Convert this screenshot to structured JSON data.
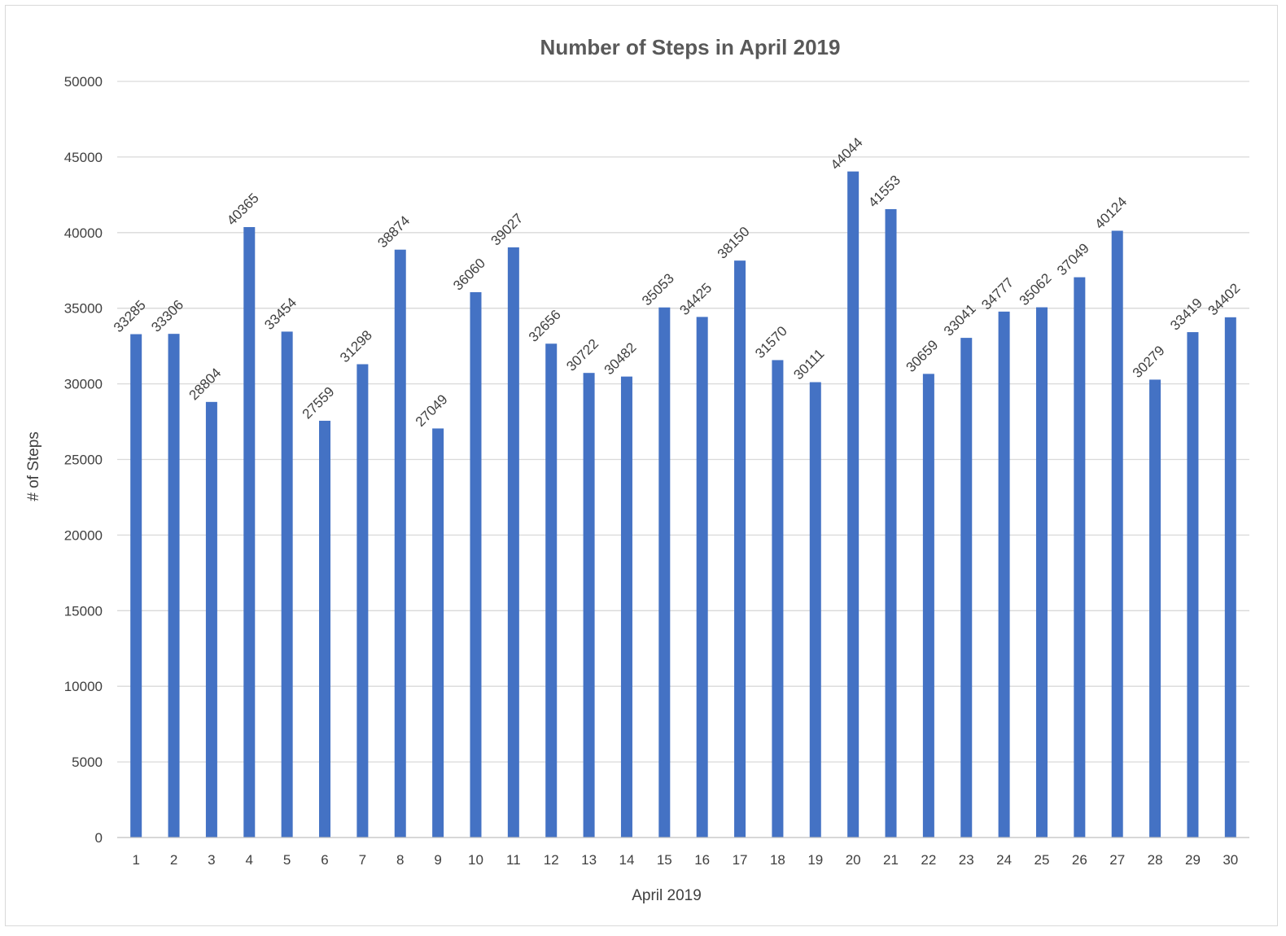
{
  "chart_data": {
    "type": "bar",
    "title": "Number of Steps in April 2019",
    "xlabel": "April 2019",
    "ylabel": "# of Steps",
    "ylim": [
      0,
      50000
    ],
    "ytick_step": 5000,
    "grid": true,
    "legend": "none",
    "colors": {
      "bar": "#4472C4"
    },
    "categories": [
      "1",
      "2",
      "3",
      "4",
      "5",
      "6",
      "7",
      "8",
      "9",
      "10",
      "11",
      "12",
      "13",
      "14",
      "15",
      "16",
      "17",
      "18",
      "19",
      "20",
      "21",
      "22",
      "23",
      "24",
      "25",
      "26",
      "27",
      "28",
      "29",
      "30"
    ],
    "values": [
      33285,
      33306,
      28804,
      40365,
      33454,
      27559,
      31298,
      38874,
      27049,
      36060,
      39027,
      32656,
      30722,
      30482,
      35053,
      34425,
      38150,
      31570,
      30111,
      44044,
      41553,
      30659,
      33041,
      34777,
      35062,
      37049,
      40124,
      30279,
      33419,
      34402
    ]
  }
}
